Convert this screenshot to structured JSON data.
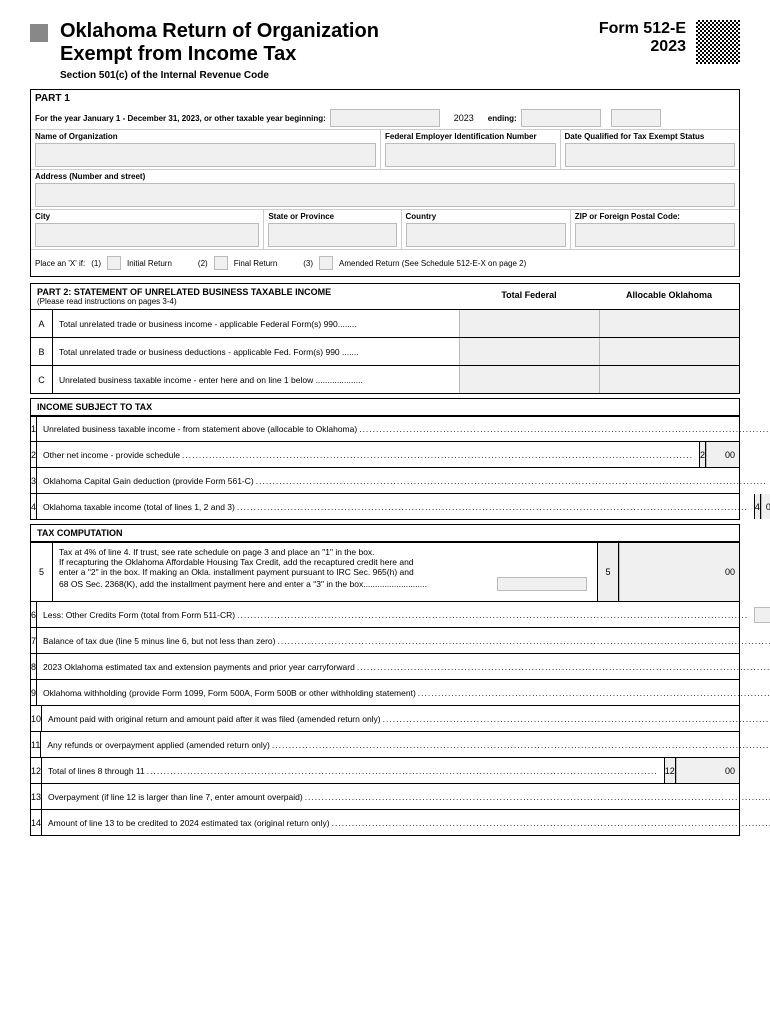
{
  "header": {
    "title_line1": "Oklahoma Return of Organization",
    "title_line2": "Exempt from Income Tax",
    "subtitle": "Section 501(c) of the Internal Revenue Code",
    "form_id": "Form 512-E",
    "year": "2023"
  },
  "part1": {
    "label": "PART 1",
    "year_line": "For the year January 1 - December 31, 2023, or other taxable year beginning:",
    "year_val": "2023",
    "ending": "ending:",
    "name_org": "Name of Organization",
    "fein": "Federal Employer Identification Number",
    "date_qual": "Date Qualified for Tax Exempt Status",
    "address": "Address (Number and street)",
    "city": "City",
    "state": "State or Province",
    "country": "Country",
    "zip": "ZIP or Foreign Postal Code:",
    "place_x": "Place an 'X' if:",
    "opt1_num": "(1)",
    "opt1": "Initial Return",
    "opt2_num": "(2)",
    "opt2": "Final Return",
    "opt3_num": "(3)",
    "opt3": "Amended Return (See Schedule 512-E-X on page 2)"
  },
  "part2": {
    "title": "PART 2: STATEMENT OF UNRELATED BUSINESS TAXABLE INCOME",
    "sub": "(Please read instructions on pages 3-4)",
    "col1": "Total Federal",
    "col2": "Allocable Oklahoma",
    "rows": [
      {
        "l": "A",
        "t": "Total unrelated trade or business income - applicable Federal Form(s) 990........"
      },
      {
        "l": "B",
        "t": "Total unrelated trade or business deductions - applicable Fed. Form(s) 990 ......."
      },
      {
        "l": "C",
        "t": "Unrelated business taxable income - enter here and on line 1 below ...................."
      }
    ]
  },
  "income_hdr": "INCOME SUBJECT TO TAX",
  "income_lines": [
    {
      "n": "1",
      "t": "Unrelated business taxable income - from statement above (allocable to Oklahoma)"
    },
    {
      "n": "2",
      "t": "Other net income - provide schedule"
    },
    {
      "n": "3",
      "t": "Oklahoma Capital Gain deduction (provide Form 561-C)"
    },
    {
      "n": "4",
      "t": "Oklahoma taxable income (total of lines 1, 2 and 3)"
    }
  ],
  "tax_hdr": "TAX COMPUTATION",
  "line5": {
    "n": "5",
    "t1": "Tax at 4% of line 4. If trust, see rate schedule on page 3 and place an \"1\" in the box.",
    "t2": "If recapturing the Oklahoma Affordable Housing Tax Credit, add the recaptured credit here and",
    "t3": "enter a \"2\" in the box. If making an Okla. installment payment pursuant to IRC Sec. 965(h) and",
    "t4": "68 OS Sec. 2368(K), add the installment payment here and enter a \"3\" in the box"
  },
  "tax_lines": [
    {
      "n": "6",
      "t": "Less: Other Credits Form (total from Form 511-CR)"
    },
    {
      "n": "7",
      "t": "Balance of tax due (line 5 minus line 6, but not less than zero)"
    },
    {
      "n": "8",
      "t": "2023 Oklahoma estimated tax and extension payments and prior year carryforward"
    },
    {
      "n": "9",
      "t": "Oklahoma withholding (provide Form 1099, Form 500A, Form 500B or other withholding statement)"
    },
    {
      "n": "10",
      "t": "Amount paid with original return and amount paid after it was filed (amended return only)"
    },
    {
      "n": "11",
      "t": "Any refunds or overpayment applied (amended return only)",
      "paren": true
    },
    {
      "n": "12",
      "t": "Total of lines 8 through 11"
    },
    {
      "n": "13",
      "t": "Overpayment (if line 12 is larger than line 7, enter amount overpaid)"
    },
    {
      "n": "14",
      "t": "Amount of line 13 to be credited to 2024 estimated tax (original return only)"
    }
  ],
  "suffix": "00",
  "colors": {
    "fill": "#f0f0f0",
    "border": "#000000"
  }
}
